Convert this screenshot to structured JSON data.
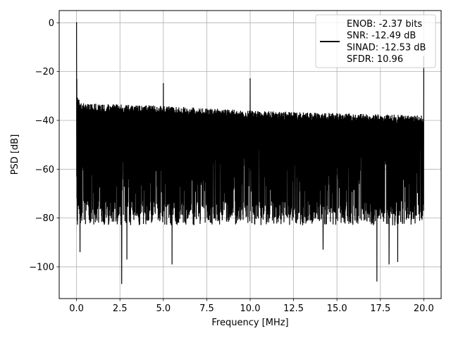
{
  "chart_data": {
    "type": "line",
    "title": "",
    "xlabel": "Frequency [MHz]",
    "ylabel": "PSD [dB]",
    "xlim": [
      -1.0,
      21.0
    ],
    "ylim": [
      -113.0,
      5.0
    ],
    "grid": true,
    "x_ticks": [
      0.0,
      2.5,
      5.0,
      7.5,
      10.0,
      12.5,
      15.0,
      17.5,
      20.0
    ],
    "x_tick_labels": [
      "0.0",
      "2.5",
      "5.0",
      "7.5",
      "10.0",
      "12.5",
      "15.0",
      "17.5",
      "20.0"
    ],
    "y_ticks": [
      0,
      -20,
      -40,
      -60,
      -80,
      -100
    ],
    "y_tick_labels": [
      "0",
      "−20",
      "−40",
      "−60",
      "−80",
      "−100"
    ],
    "legend_position": "top-right",
    "legend_lines": [
      "ENOB: -2.37 bits",
      "SNR: -12.49 dB",
      "SINAD: -12.53 dB",
      "SFDR: 10.96"
    ],
    "series": [
      {
        "color": "#000000",
        "spectrum_range": [
          0.0,
          20.0
        ],
        "noise_ceiling": {
          "x": [
            0.0,
            0.3,
            5.0,
            10.0,
            15.0,
            20.0
          ],
          "y": [
            -30,
            -33,
            -34,
            -36,
            -37,
            -38
          ]
        },
        "noise_typical_floor": -78,
        "peaks": [
          {
            "x": 0.0,
            "y": 0.0
          },
          {
            "x": 5.0,
            "y": -25.0
          },
          {
            "x": 10.0,
            "y": -23.0
          },
          {
            "x": 20.0,
            "y": -14.0
          }
        ],
        "deep_nulls": [
          {
            "x": 0.2,
            "y": -94
          },
          {
            "x": 2.6,
            "y": -107
          },
          {
            "x": 2.9,
            "y": -97
          },
          {
            "x": 5.5,
            "y": -99
          },
          {
            "x": 10.0,
            "y": -89
          },
          {
            "x": 14.2,
            "y": -93
          },
          {
            "x": 17.3,
            "y": -106
          },
          {
            "x": 18.0,
            "y": -99
          },
          {
            "x": 18.5,
            "y": -98
          }
        ]
      }
    ]
  }
}
